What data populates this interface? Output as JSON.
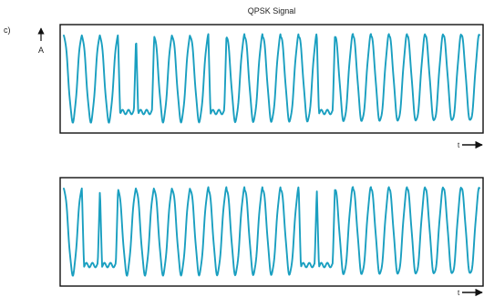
{
  "figure": {
    "title": "QPSK Signal",
    "panel_label": "c)",
    "amplitude_label": "A",
    "time_label": "t",
    "colors": {
      "signal": "#1a9fc0",
      "frame": "#111111",
      "text": "#222222"
    }
  },
  "chart_data": [
    {
      "type": "line",
      "title": "QPSK Signal",
      "ylabel": "A",
      "xlabel": "t",
      "grid": false,
      "legend": "none",
      "series": [
        {
          "symbols": [
            "osc",
            "osc",
            "osc",
            "flat",
            "flat",
            "osc",
            "osc",
            "osc",
            "flat",
            "osc",
            "osc",
            "osc",
            "osc",
            "osc",
            "flat",
            "osc",
            "osc",
            "osc",
            "osc",
            "osc",
            "osc",
            "osc",
            "osc"
          ]
        }
      ]
    },
    {
      "type": "line",
      "ylabel": "",
      "xlabel": "t",
      "grid": false,
      "legend": "none",
      "series": [
        {
          "symbols": [
            "osc",
            "flat",
            "flat",
            "osc",
            "osc",
            "osc",
            "osc",
            "osc",
            "osc",
            "osc",
            "osc",
            "osc",
            "osc",
            "flat",
            "flat",
            "osc",
            "osc",
            "osc",
            "osc",
            "osc",
            "osc",
            "osc",
            "osc"
          ]
        }
      ]
    }
  ]
}
